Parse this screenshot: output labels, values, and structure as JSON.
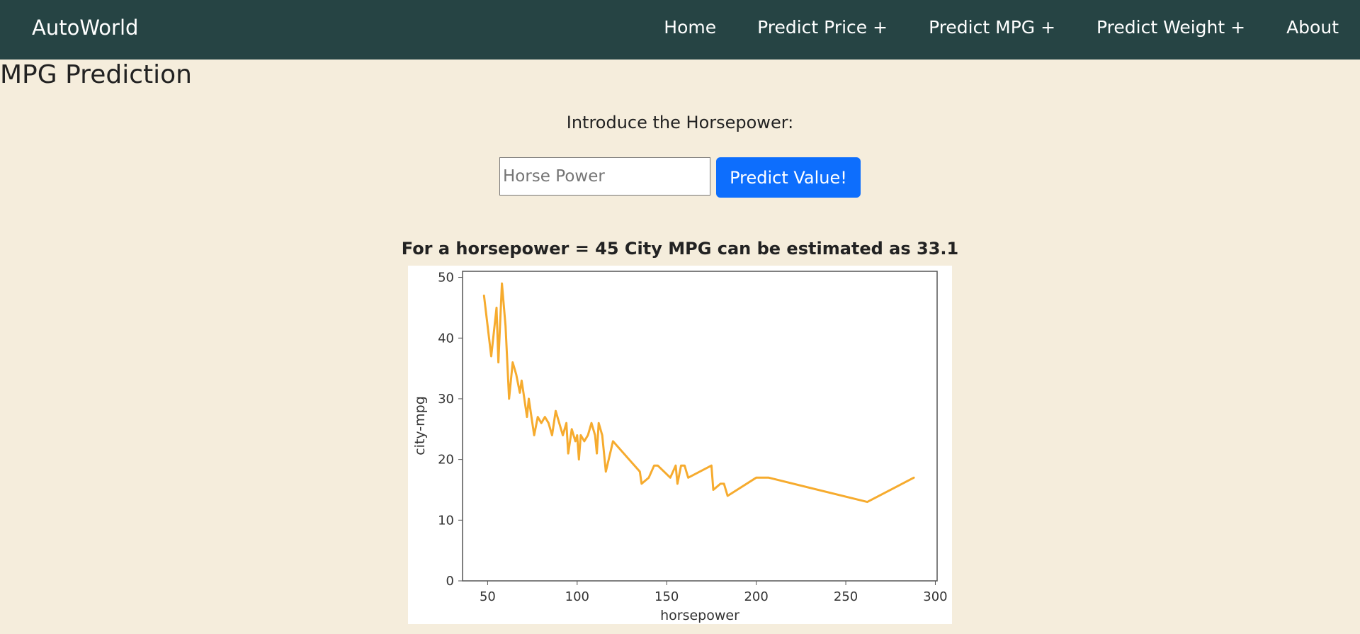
{
  "navbar": {
    "brand": "AutoWorld",
    "items": [
      {
        "label": "Home"
      },
      {
        "label": "Predict Price +"
      },
      {
        "label": "Predict MPG +"
      },
      {
        "label": "Predict Weight +"
      },
      {
        "label": "About"
      }
    ]
  },
  "page": {
    "title": "MPG Prediction",
    "prompt": "Introduce the Horsepower:",
    "input": {
      "value": "",
      "placeholder": "Horse Power"
    },
    "button_label": "Predict Value!",
    "result": "For a horsepower = 45 City MPG can be estimated as 33.1"
  },
  "colors": {
    "navbar_bg": "#264444",
    "page_bg": "#f5eddc",
    "button_bg": "#0d6efd",
    "line": "#f5a623"
  },
  "chart_data": {
    "type": "line",
    "xlabel": "horsepower",
    "ylabel": "city-mpg",
    "xlim": [
      36,
      301
    ],
    "ylim": [
      0,
      51
    ],
    "xticks": [
      50,
      100,
      150,
      200,
      250,
      300
    ],
    "yticks": [
      0,
      10,
      20,
      30,
      40,
      50
    ],
    "grid": false,
    "series": [
      {
        "x": [
          48,
          52,
          55,
          56,
          58,
          60,
          62,
          64,
          66,
          68,
          69,
          70,
          72,
          73,
          76,
          78,
          80,
          82,
          84,
          86,
          88,
          90,
          92,
          94,
          95,
          97,
          99,
          100,
          101,
          102,
          104,
          106,
          108,
          110,
          111,
          112,
          114,
          116,
          120,
          123,
          135,
          136,
          140,
          143,
          145,
          152,
          155,
          156,
          158,
          160,
          161,
          162,
          175,
          176,
          180,
          182,
          184,
          200,
          207,
          262,
          288
        ],
        "y": [
          47,
          37,
          45,
          36,
          49,
          42,
          30,
          36,
          34,
          31,
          33,
          31,
          27,
          30,
          24,
          27,
          26,
          27,
          26,
          24,
          28,
          26,
          24,
          26,
          21,
          25,
          23,
          24,
          20,
          24,
          23,
          24,
          26,
          24,
          21,
          26,
          24,
          18,
          23,
          22,
          18,
          16,
          17,
          19,
          19,
          17,
          19,
          16,
          19,
          19,
          18,
          17,
          19,
          15,
          16,
          16,
          14,
          17,
          17,
          13,
          17
        ]
      }
    ]
  }
}
